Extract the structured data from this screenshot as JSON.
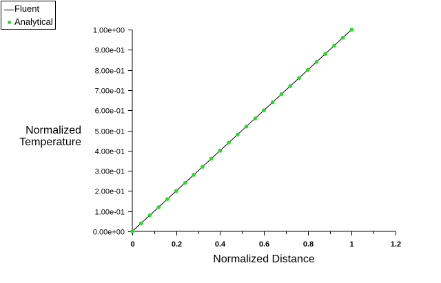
{
  "legend": {
    "items": [
      {
        "label": "Fluent",
        "marker": "line",
        "color": "#000000"
      },
      {
        "label": "Analytical",
        "marker": "dot",
        "color": "#22dd22"
      }
    ]
  },
  "axes": {
    "ylabel_line1": "Normalized",
    "ylabel_line2": "Temperature",
    "xlabel": "Normalized Distance"
  },
  "chart_data": {
    "type": "line",
    "title": "",
    "xlabel": "Normalized Distance",
    "ylabel": "Normalized Temperature",
    "xlim": [
      0,
      1.2
    ],
    "ylim": [
      0,
      1.0
    ],
    "xticks": [
      "0",
      "0.2",
      "0.4",
      "0.6",
      "0.8",
      "1",
      "1.2"
    ],
    "yticks": [
      "0.00e+00",
      "1.00e-01",
      "2.00e-01",
      "3.00e-01",
      "4.00e-01",
      "5.00e-01",
      "6.00e-01",
      "7.00e-01",
      "8.00e-01",
      "9.00e-01",
      "1.00e+00"
    ],
    "grid": false,
    "legend_position": "top-left",
    "series": [
      {
        "name": "Fluent",
        "style": "line",
        "color": "#000000",
        "x": [
          0,
          1
        ],
        "y": [
          0,
          1
        ]
      },
      {
        "name": "Analytical",
        "style": "markers",
        "color": "#22dd22",
        "x": [
          0,
          0.04,
          0.08,
          0.12,
          0.16,
          0.2,
          0.24,
          0.28,
          0.32,
          0.36,
          0.4,
          0.44,
          0.48,
          0.52,
          0.56,
          0.6,
          0.64,
          0.68,
          0.72,
          0.76,
          0.8,
          0.84,
          0.88,
          0.92,
          0.96,
          1.0
        ],
        "y": [
          0,
          0.04,
          0.08,
          0.12,
          0.16,
          0.2,
          0.24,
          0.28,
          0.32,
          0.36,
          0.4,
          0.44,
          0.48,
          0.52,
          0.56,
          0.6,
          0.64,
          0.68,
          0.72,
          0.76,
          0.8,
          0.84,
          0.88,
          0.92,
          0.96,
          1.0
        ]
      }
    ]
  }
}
